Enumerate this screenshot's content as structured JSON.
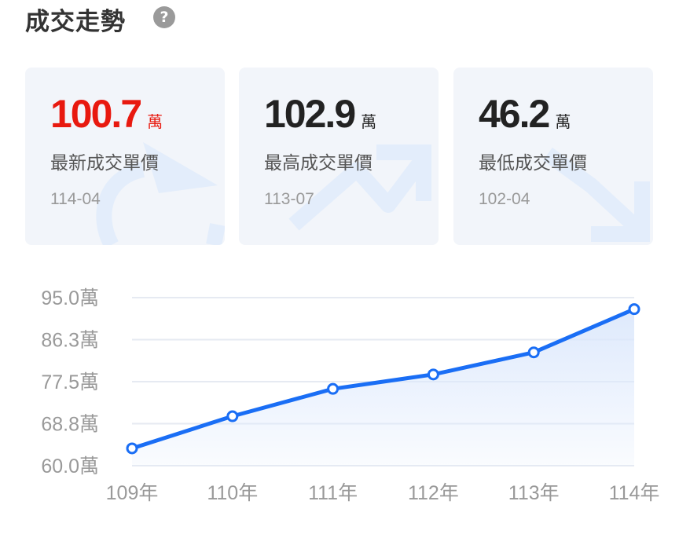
{
  "header": {
    "title": "成交走勢",
    "help_icon": "question-circle-icon",
    "help_glyph": "?"
  },
  "cards": [
    {
      "value": "100.7",
      "unit": "萬",
      "label": "最新成交單價",
      "date": "114-04",
      "value_color": "#e8190f",
      "icon": "refresh-arrow-icon"
    },
    {
      "value": "102.9",
      "unit": "萬",
      "label": "最高成交單價",
      "date": "113-07",
      "value_color": "#222222",
      "icon": "trend-up-icon"
    },
    {
      "value": "46.2",
      "unit": "萬",
      "label": "最低成交單價",
      "date": "102-04",
      "value_color": "#222222",
      "icon": "trend-down-icon"
    }
  ],
  "chart_data": {
    "type": "area",
    "categories": [
      "109年",
      "110年",
      "111年",
      "112年",
      "113年",
      "114年"
    ],
    "values": [
      63.6,
      70.3,
      76.0,
      79.0,
      83.6,
      92.6
    ],
    "yticks": [
      "95.0萬",
      "86.3萬",
      "77.5萬",
      "68.8萬",
      "60.0萬"
    ],
    "ylim": [
      60.0,
      95.0
    ],
    "grid": true,
    "line_color": "#1a6ef5",
    "fill_color": "#dce8fc"
  }
}
